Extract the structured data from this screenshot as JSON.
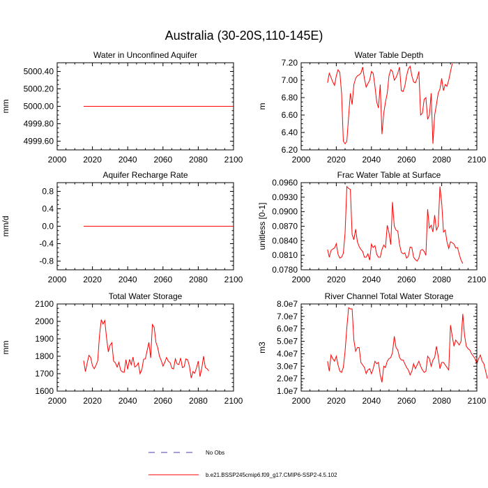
{
  "figure": {
    "title": "Australia (30-20S,110-145E)",
    "legend": [
      {
        "label": "No Obs",
        "style": "dashed",
        "color": "#4b3bb5"
      },
      {
        "label": "b.e21.BSSP245cmip6.f09_g17.CMIP6-SSP2-4.5.102",
        "style": "solid",
        "color": "#ff0000"
      }
    ]
  },
  "chart_data": [
    {
      "type": "line",
      "title": "Water in Unconfined Aquifer",
      "ylabel": "mm",
      "xlabel": "",
      "xlim": [
        2000,
        2100
      ],
      "ylim": [
        4999.5,
        5000.5
      ],
      "xticks": [
        "2000",
        "2020",
        "2040",
        "2060",
        "2080",
        "2100"
      ],
      "yticks": [
        4999.6,
        4999.8,
        5000.0,
        5000.2,
        5000.4
      ],
      "yticklabels": [
        "4999.60",
        "4999.80",
        "5000.00",
        "5000.20",
        "5000.40"
      ],
      "series": [
        {
          "color": "#ff0000",
          "x": [
            2015,
            2100
          ],
          "values": [
            5000.0,
            5000.0
          ]
        }
      ]
    },
    {
      "type": "line",
      "title": "Water Table Depth",
      "ylabel": "m",
      "xlabel": "",
      "xlim": [
        2000,
        2100
      ],
      "ylim": [
        6.2,
        7.2
      ],
      "xticks": [
        "2000",
        "2020",
        "2040",
        "2060",
        "2080",
        "2100"
      ],
      "yticks": [
        6.2,
        6.4,
        6.6,
        6.8,
        7.0,
        7.2
      ],
      "yticklabels": [
        "6.20",
        "6.40",
        "6.60",
        "6.80",
        "7.00",
        "7.20"
      ],
      "series": [
        {
          "color": "#ff0000",
          "x_start": 2015,
          "x_step": 1,
          "values": [
            6.97,
            7.08,
            7.03,
            6.98,
            6.94,
            7.05,
            7.12,
            7.09,
            6.85,
            6.3,
            6.27,
            6.3,
            6.58,
            6.85,
            6.72,
            6.95,
            7.02,
            7.05,
            7.06,
            7.08,
            7.15,
            7.02,
            6.92,
            6.96,
            7.0,
            7.1,
            7.08,
            6.93,
            6.75,
            6.68,
            6.95,
            6.38,
            6.62,
            6.75,
            6.85,
            7.05,
            7.12,
            7.1,
            7.0,
            7.03,
            7.08,
            7.15,
            6.88,
            6.87,
            6.93,
            7.05,
            7.13,
            7.16,
            7.05,
            6.98,
            6.97,
            7.02,
            7.1,
            6.6,
            6.62,
            6.78,
            6.8,
            6.55,
            6.6,
            6.85,
            6.27,
            6.6,
            6.72,
            6.85,
            6.9,
            7.02,
            6.88,
            6.95,
            6.93,
            7.0,
            7.1,
            7.19
          ]
        }
      ]
    },
    {
      "type": "line",
      "title": "Aquifer Recharge Rate",
      "ylabel": "mm/d",
      "xlabel": "",
      "xlim": [
        2000,
        2100
      ],
      "ylim": [
        -1.0,
        1.0
      ],
      "xticks": [
        "2000",
        "2020",
        "2040",
        "2060",
        "2080",
        "2100"
      ],
      "yticks": [
        -0.8,
        -0.4,
        0.0,
        0.4,
        0.8
      ],
      "yticklabels": [
        "-0.8",
        "-0.4",
        "0.0",
        "0.4",
        "0.8"
      ],
      "series": [
        {
          "color": "#ff0000",
          "x": [
            2015,
            2100
          ],
          "values": [
            0.0,
            0.0
          ]
        }
      ]
    },
    {
      "type": "line",
      "title": "Frac Water Table at Surface",
      "ylabel": "unitless [0-1]",
      "xlabel": "",
      "xlim": [
        2000,
        2100
      ],
      "ylim": [
        0.078,
        0.096
      ],
      "xticks": [
        "2000",
        "2020",
        "2040",
        "2060",
        "2080",
        "2100"
      ],
      "yticks": [
        0.078,
        0.081,
        0.084,
        0.087,
        0.09,
        0.093,
        0.096
      ],
      "yticklabels": [
        "0.0780",
        "0.0810",
        "0.0840",
        "0.0870",
        "0.0900",
        "0.0930",
        "0.0960"
      ],
      "series": [
        {
          "color": "#ff0000",
          "x_start": 2015,
          "x_step": 1,
          "values": [
            0.0822,
            0.0806,
            0.082,
            0.0823,
            0.0825,
            0.0834,
            0.0812,
            0.0804,
            0.0806,
            0.0814,
            0.0856,
            0.0952,
            0.0948,
            0.0946,
            0.0853,
            0.0842,
            0.0864,
            0.0838,
            0.0828,
            0.0822,
            0.0818,
            0.0806,
            0.0806,
            0.0813,
            0.08,
            0.0833,
            0.0826,
            0.083,
            0.0812,
            0.0806,
            0.0806,
            0.0822,
            0.0831,
            0.0826,
            0.0872,
            0.0856,
            0.0832,
            0.092,
            0.087,
            0.0862,
            0.086,
            0.0832,
            0.0816,
            0.0813,
            0.0815,
            0.0804,
            0.0808,
            0.0827,
            0.0826,
            0.0806,
            0.0801,
            0.0798,
            0.0804,
            0.082,
            0.0822,
            0.0818,
            0.081,
            0.0905,
            0.0866,
            0.0872,
            0.0858,
            0.0893,
            0.0862,
            0.087,
            0.0952,
            0.0918,
            0.0858,
            0.0862,
            0.0838,
            0.0824,
            0.0838,
            0.0836,
            0.0833,
            0.0825,
            0.0826,
            0.0812,
            0.08,
            0.0793
          ]
        }
      ]
    },
    {
      "type": "line",
      "title": "Total Water Storage",
      "ylabel": "mm",
      "xlabel": "",
      "xlim": [
        2000,
        2100
      ],
      "ylim": [
        1600,
        2100
      ],
      "xticks": [
        "2000",
        "2020",
        "2040",
        "2060",
        "2080",
        "2100"
      ],
      "yticks": [
        1600,
        1700,
        1800,
        1900,
        2000,
        2100
      ],
      "yticklabels": [
        "1600",
        "1700",
        "1800",
        "1900",
        "2000",
        "2100"
      ],
      "series": [
        {
          "color": "#ff0000",
          "x_start": 2015,
          "x_step": 1,
          "values": [
            1775,
            1712,
            1760,
            1805,
            1793,
            1745,
            1728,
            1748,
            1775,
            1920,
            2010,
            1985,
            2005,
            1905,
            1825,
            1863,
            1878,
            1772,
            1762,
            1738,
            1765,
            1720,
            1710,
            1708,
            1780,
            1725,
            1782,
            1752,
            1795,
            1738,
            1745,
            1762,
            1700,
            1722,
            1783,
            1785,
            1832,
            1880,
            1790,
            1982,
            1966,
            1880,
            1850,
            1800,
            1775,
            1743,
            1765,
            1793,
            1772,
            1764,
            1732,
            1727,
            1785,
            1756,
            1752,
            1790,
            1735,
            1740,
            1785,
            1780,
            1742,
            1675,
            1712,
            1702,
            1734,
            1772,
            1683,
            1732,
            1800,
            1735,
            1728,
            1715
          ]
        }
      ]
    },
    {
      "type": "line",
      "title": "River Channel Total Water Storage",
      "ylabel": "m3",
      "xlabel": "",
      "xlim": [
        2000,
        2100
      ],
      "ylim": [
        10000000,
        80000000
      ],
      "xticks": [
        "2000",
        "2020",
        "2040",
        "2060",
        "2080",
        "2100"
      ],
      "yticks": [
        10000000,
        20000000,
        30000000,
        40000000,
        50000000,
        60000000,
        70000000,
        80000000
      ],
      "yticklabels": [
        "1.0e7",
        "2.0e7",
        "3.0e7",
        "4.0e7",
        "5.0e7",
        "6.0e7",
        "7.0e7",
        "8.0e7"
      ],
      "series": [
        {
          "color": "#ff0000",
          "x_start": 2015,
          "x_step": 1,
          "values": [
            34000000,
            26000000,
            39000000,
            36000000,
            34000000,
            38000000,
            31000000,
            26000000,
            25000000,
            29000000,
            42000000,
            61000000,
            77000000,
            76000000,
            76000000,
            51000000,
            42000000,
            45000000,
            45000000,
            33000000,
            31000000,
            29000000,
            24000000,
            27000000,
            28000000,
            24000000,
            28000000,
            34000000,
            32000000,
            33000000,
            23000000,
            17000000,
            30000000,
            29000000,
            34000000,
            36000000,
            37000000,
            41000000,
            54000000,
            45000000,
            43000000,
            37000000,
            35000000,
            35000000,
            32000000,
            29000000,
            27000000,
            23000000,
            26000000,
            32000000,
            28000000,
            31000000,
            34000000,
            30000000,
            27000000,
            25000000,
            26000000,
            38000000,
            36000000,
            30000000,
            35000000,
            37000000,
            46000000,
            38000000,
            28000000,
            33000000,
            33000000,
            31000000,
            29000000,
            27000000,
            63000000,
            54000000,
            46000000,
            51000000,
            49000000,
            47000000,
            50000000,
            72000000,
            55000000,
            46000000,
            44000000,
            43000000,
            40000000,
            38000000,
            36000000,
            32000000,
            36000000,
            39000000,
            34000000,
            32000000,
            26000000,
            20000000
          ]
        }
      ]
    }
  ]
}
